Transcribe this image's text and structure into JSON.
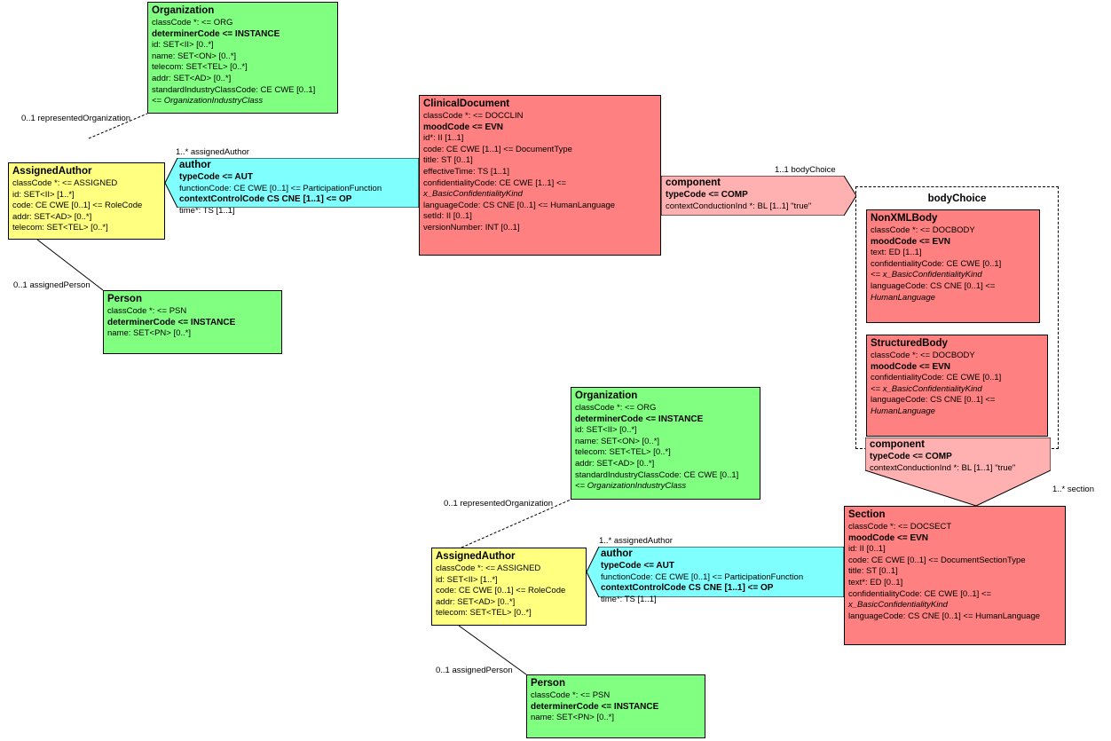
{
  "nodes": [
    {
      "title": "Organization",
      "shape": "box",
      "color": "#80ff80",
      "rows": [
        {
          "text": "classCode *: <= ORG"
        },
        {
          "text": "determinerCode <= INSTANCE",
          "style": "bold"
        },
        {
          "text": "id: SET<II> [0..*]"
        },
        {
          "text": "name: SET<ON> [0..*]"
        },
        {
          "text": "telecom: SET<TEL> [0..*]"
        },
        {
          "text": "addr: SET<AD> [0..*]"
        },
        {
          "text": "standardIndustryClassCode: CE CWE [0..1]"
        },
        {
          "text": " <= OrganizationIndustryClass",
          "style": "italic"
        }
      ]
    },
    {
      "title": "AssignedAuthor",
      "shape": "box",
      "color": "#ffff80",
      "rows": [
        {
          "text": "classCode *: <= ASSIGNED"
        },
        {
          "text": "id: SET<II> [1..*]"
        },
        {
          "text": "code: CE CWE [0..1] <= RoleCode"
        },
        {
          "text": "addr: SET<AD> [0..*]"
        },
        {
          "text": "telecom: SET<TEL> [0..*]"
        }
      ]
    },
    {
      "title": "Person",
      "shape": "box",
      "color": "#80ff80",
      "rows": [
        {
          "text": "classCode *: <= PSN"
        },
        {
          "text": "determinerCode <= INSTANCE",
          "style": "bold"
        },
        {
          "text": "name: SET<PN> [0..*]"
        }
      ]
    },
    {
      "title": "ClinicalDocument",
      "shape": "box",
      "color": "#ff8080",
      "rows": [
        {
          "text": "classCode *: <= DOCCLIN"
        },
        {
          "text": "moodCode <= EVN",
          "style": "bold"
        },
        {
          "text": "id*: II [1..1]"
        },
        {
          "text": "code: CE CWE [1..1] <= DocumentType"
        },
        {
          "text": "title: ST [0..1]"
        },
        {
          "text": "effectiveTime: TS [1..1]"
        },
        {
          "text": "confidentialityCode: CE CWE [1..1] <="
        },
        {
          "text": "x_BasicConfidentialityKind",
          "style": "italic"
        },
        {
          "text": "languageCode: CS CNE [0..1] <= HumanLanguage"
        },
        {
          "text": "setId: II [0..1]"
        },
        {
          "text": "versionNumber: INT [0..1]"
        }
      ]
    },
    {
      "title": "author",
      "shape": "left-arrow",
      "color": "#80ffff",
      "rows": [
        {
          "text": "typeCode <= AUT",
          "style": "bold"
        },
        {
          "text": "functionCode: CE CWE [0..1] <= ParticipationFunction"
        },
        {
          "text": "contextControlCode CS CNE [1..1] <= OP",
          "style": "bold"
        },
        {
          "text": "time*: TS [1..1]"
        }
      ]
    },
    {
      "title": "component",
      "shape": "right-arrow",
      "color": "#ffb0b0",
      "rows": [
        {
          "text": "typeCode <= COMP",
          "style": "bold"
        },
        {
          "text": "contextConductionInd *: BL [1..1] \"true\""
        }
      ]
    },
    {
      "title": "bodyChoice",
      "shape": "dashed",
      "color": "#ffffff",
      "rows": []
    },
    {
      "title": "NonXMLBody",
      "shape": "box",
      "color": "#ff8080",
      "rows": [
        {
          "text": "classCode *: <= DOCBODY"
        },
        {
          "text": "moodCode <= EVN",
          "style": "bold"
        },
        {
          "text": "text: ED [1..1]"
        },
        {
          "text": "confidentialityCode: CE CWE [0..1]"
        },
        {
          "text": " <= x_BasicConfidentialityKind",
          "style": "italic"
        },
        {
          "text": "languageCode: CS CNE [0..1] <="
        },
        {
          "text": "HumanLanguage",
          "style": "italic"
        }
      ]
    },
    {
      "title": "StructuredBody",
      "shape": "box",
      "color": "#ff8080",
      "rows": [
        {
          "text": "classCode *: <= DOCBODY"
        },
        {
          "text": "moodCode <= EVN",
          "style": "bold"
        },
        {
          "text": "confidentialityCode: CE CWE [0..1]"
        },
        {
          "text": " <= x_BasicConfidentialityKind",
          "style": "italic"
        },
        {
          "text": "languageCode: CS CNE [0..1] <="
        },
        {
          "text": "HumanLanguage",
          "style": "italic"
        }
      ]
    },
    {
      "title": "component",
      "shape": "down-arrow",
      "color": "#ffb0b0",
      "rows": [
        {
          "text": "typeCode <= COMP",
          "style": "bold"
        },
        {
          "text": "contextConductionInd *: BL [1..1] \"true\""
        }
      ]
    },
    {
      "title": "Section",
      "shape": "box",
      "color": "#ff8080",
      "rows": [
        {
          "text": "classCode *: <= DOCSECT"
        },
        {
          "text": "moodCode <= EVN",
          "style": "bold"
        },
        {
          "text": "id: II [0..1]"
        },
        {
          "text": "code: CE CWE [0..1] <= DocumentSectionType"
        },
        {
          "text": "title: ST [0..1]"
        },
        {
          "text": "text*: ED [0..1]"
        },
        {
          "text": "confidentialityCode: CE CWE [0..1] <="
        },
        {
          "text": "x_BasicConfidentialityKind",
          "style": "italic"
        },
        {
          "text": "languageCode: CS CNE [0..1] <= HumanLanguage"
        }
      ]
    },
    {
      "title": "Organization",
      "shape": "box",
      "color": "#80ff80",
      "rows": [
        {
          "text": "classCode *: <= ORG"
        },
        {
          "text": "determinerCode <= INSTANCE",
          "style": "bold"
        },
        {
          "text": "id: SET<II> [0..*]"
        },
        {
          "text": "name: SET<ON> [0..*]"
        },
        {
          "text": "telecom: SET<TEL> [0..*]"
        },
        {
          "text": "addr: SET<AD> [0..*]"
        },
        {
          "text": "standardIndustryClassCode: CE CWE [0..1]"
        },
        {
          "text": " <= OrganizationIndustryClass",
          "style": "italic"
        }
      ]
    },
    {
      "title": "AssignedAuthor",
      "shape": "box",
      "color": "#ffff80",
      "rows": [
        {
          "text": "classCode *: <= ASSIGNED"
        },
        {
          "text": "id: SET<II> [1..*]"
        },
        {
          "text": "code: CE CWE [0..1] <= RoleCode"
        },
        {
          "text": "addr: SET<AD> [0..*]"
        },
        {
          "text": "telecom: SET<TEL> [0..*]"
        }
      ]
    },
    {
      "title": "author",
      "shape": "left-arrow",
      "color": "#80ffff",
      "rows": [
        {
          "text": "typeCode <= AUT",
          "style": "bold"
        },
        {
          "text": "functionCode: CE CWE [0..1] <= ParticipationFunction"
        },
        {
          "text": "contextControlCode CS CNE [1..1] <= OP",
          "style": "bold"
        },
        {
          "text": "time*: TS [1..1]"
        }
      ]
    },
    {
      "title": "Person",
      "shape": "box",
      "color": "#80ff80",
      "rows": [
        {
          "text": "classCode *: <= PSN"
        },
        {
          "text": "determinerCode <= INSTANCE",
          "style": "bold"
        },
        {
          "text": "name: SET<PN> [0..*]"
        }
      ]
    }
  ],
  "edge_labels": [
    "0..1 representedOrganization",
    "1..* assignedAuthor",
    "0..1 assignedPerson",
    "1..1 bodyChoice",
    "1..* section",
    "0..1 representedOrganization",
    "1..* assignedAuthor",
    "0..1 assignedPerson"
  ]
}
